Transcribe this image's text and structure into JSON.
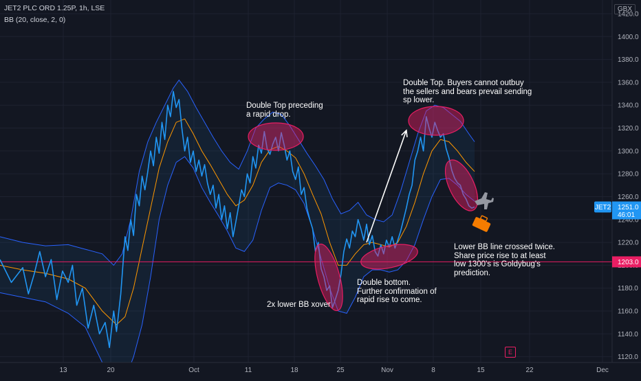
{
  "header": {
    "symbol_line": "JET2 PLC ORD 1.25P, 1h, LSE",
    "indicator_line": "BB (20, close, 2, 0)"
  },
  "currency": "GBX",
  "price_tags": {
    "ticker": "JET2",
    "last_price": "1251.0",
    "countdown": "46:01",
    "hline_price": "1203.0"
  },
  "event_badge": "E",
  "colors": {
    "background": "#131722",
    "grid": "#1e2230",
    "price": "#2196f3",
    "basis": "#ff9800",
    "bands": "#2962ff",
    "band_fill": "rgba(33,150,243,0.08)",
    "hline": "#e91e63",
    "annotation_fill": "rgba(233,30,99,0.45)",
    "annotation_stroke": "#e91e63",
    "arrow": "#ffffff",
    "last_tag": "#2196f3",
    "hline_tag": "#e91e63"
  },
  "annotations": [
    "Double Top preceding\na rapid drop.",
    "Double Top. Buyers cannot outbuy\nthe sellers and bears prevail sending\nsp lower.",
    "Lower BB line crossed twice.\nShare price rise to at least\nlow 1300's is Goldybug's\nprediction.",
    "Double bottom.\nFurther confirmation of\nrapid rise to come.",
    "2x lower BB xover"
  ],
  "chart_data": {
    "type": "line",
    "title": "JET2 PLC ORD 1.25P, 1h, LSE",
    "indicator": "BB (20, close, 2, 0)",
    "ylabel": "",
    "xlabel": "",
    "ylim": [
      1115,
      1432
    ],
    "y_ticks": [
      1120,
      1140,
      1160,
      1180,
      1200,
      1220,
      1240,
      1260,
      1280,
      1300,
      1320,
      1340,
      1360,
      1380,
      1400,
      1420
    ],
    "x_ticks": [
      "13",
      "20",
      "Oct",
      "11",
      "18",
      "25",
      "Nov",
      "8",
      "15",
      "22",
      "Dec"
    ],
    "grid": true,
    "horizontal_line": 1203,
    "last_price": 1251,
    "price_path": [
      [
        0,
        1205
      ],
      [
        4,
        1185
      ],
      [
        8,
        1198
      ],
      [
        10,
        1175
      ],
      [
        12,
        1192
      ],
      [
        14,
        1212
      ],
      [
        16,
        1190
      ],
      [
        18,
        1205
      ],
      [
        20,
        1170
      ],
      [
        22,
        1195
      ],
      [
        24,
        1185
      ],
      [
        25.5,
        1200
      ],
      [
        27,
        1165
      ],
      [
        29,
        1180
      ],
      [
        31,
        1145
      ],
      [
        33,
        1165
      ],
      [
        35,
        1140
      ],
      [
        37,
        1150
      ],
      [
        38.5,
        1128
      ],
      [
        40,
        1160
      ],
      [
        41,
        1142
      ],
      [
        42.5,
        1175
      ],
      [
        44,
        1225
      ],
      [
        45,
        1213
      ],
      [
        46,
        1240
      ],
      [
        47,
        1226
      ],
      [
        48,
        1262
      ],
      [
        49,
        1252
      ],
      [
        50,
        1278
      ],
      [
        51,
        1266
      ],
      [
        52,
        1282
      ],
      [
        53,
        1300
      ],
      [
        54,
        1287
      ],
      [
        55,
        1312
      ],
      [
        56,
        1298
      ],
      [
        57,
        1325
      ],
      [
        58,
        1310
      ],
      [
        59,
        1340
      ],
      [
        60,
        1330
      ],
      [
        61,
        1352
      ],
      [
        62,
        1338
      ],
      [
        63,
        1345
      ],
      [
        64,
        1320
      ],
      [
        65,
        1300
      ],
      [
        66,
        1312
      ],
      [
        67,
        1290
      ],
      [
        68,
        1300
      ],
      [
        69,
        1282
      ],
      [
        70,
        1292
      ],
      [
        71,
        1278
      ],
      [
        72,
        1288
      ],
      [
        73,
        1272
      ],
      [
        74,
        1262
      ],
      [
        75,
        1270
      ],
      [
        76,
        1250
      ],
      [
        77,
        1262
      ],
      [
        78,
        1240
      ],
      [
        79,
        1252
      ],
      [
        80,
        1232
      ],
      [
        81,
        1246
      ],
      [
        82,
        1225
      ],
      [
        83,
        1238
      ],
      [
        84,
        1252
      ],
      [
        85,
        1266
      ],
      [
        86,
        1260
      ],
      [
        87,
        1280
      ],
      [
        88,
        1272
      ],
      [
        89,
        1295
      ],
      [
        90,
        1285
      ],
      [
        91,
        1305
      ],
      [
        92,
        1298
      ],
      [
        93,
        1317
      ],
      [
        94,
        1302
      ],
      [
        95,
        1297
      ],
      [
        96,
        1306
      ],
      [
        97,
        1312
      ],
      [
        98,
        1300
      ],
      [
        99,
        1316
      ],
      [
        100,
        1305
      ],
      [
        101,
        1292
      ],
      [
        102,
        1300
      ],
      [
        103,
        1282
      ],
      [
        104,
        1275
      ],
      [
        105,
        1286
      ],
      [
        106,
        1262
      ],
      [
        107,
        1268
      ],
      [
        108,
        1250
      ],
      [
        109,
        1240
      ],
      [
        110,
        1232
      ],
      [
        111,
        1212
      ],
      [
        112,
        1220
      ],
      [
        113,
        1197
      ],
      [
        114,
        1190
      ],
      [
        115,
        1178
      ],
      [
        116,
        1182
      ],
      [
        117,
        1163
      ],
      [
        118,
        1170
      ],
      [
        119,
        1178
      ],
      [
        120,
        1192
      ],
      [
        121,
        1212
      ],
      [
        122,
        1223
      ],
      [
        123,
        1215
      ],
      [
        124,
        1230
      ],
      [
        125,
        1225
      ],
      [
        126,
        1240
      ],
      [
        127,
        1232
      ],
      [
        128,
        1222
      ],
      [
        129,
        1236
      ],
      [
        130,
        1218
      ],
      [
        131,
        1226
      ],
      [
        132,
        1212
      ],
      [
        133,
        1208
      ],
      [
        134,
        1218
      ],
      [
        135,
        1210
      ],
      [
        136,
        1222
      ],
      [
        137,
        1216
      ],
      [
        138,
        1225
      ],
      [
        139,
        1215
      ],
      [
        140,
        1222
      ],
      [
        141,
        1230
      ],
      [
        142,
        1240
      ],
      [
        143,
        1250
      ],
      [
        144,
        1262
      ],
      [
        145,
        1270
      ],
      [
        146,
        1292
      ],
      [
        147,
        1300
      ],
      [
        148,
        1312
      ],
      [
        149,
        1300
      ],
      [
        150,
        1330
      ],
      [
        151,
        1320
      ],
      [
        152,
        1312
      ],
      [
        153,
        1325
      ],
      [
        154,
        1318
      ],
      [
        155,
        1312
      ],
      [
        156,
        1315
      ],
      [
        157,
        1302
      ],
      [
        158,
        1294
      ],
      [
        159,
        1283
      ],
      [
        160,
        1276
      ],
      [
        161,
        1272
      ],
      [
        162,
        1270
      ],
      [
        163,
        1262
      ],
      [
        164,
        1258
      ],
      [
        165,
        1252
      ],
      [
        166,
        1250
      ],
      [
        167,
        1251
      ]
    ],
    "basis_path": [
      [
        0,
        1200
      ],
      [
        8,
        1196
      ],
      [
        16,
        1193
      ],
      [
        24,
        1188
      ],
      [
        30,
        1180
      ],
      [
        36,
        1160
      ],
      [
        41,
        1148
      ],
      [
        44,
        1155
      ],
      [
        47,
        1180
      ],
      [
        50,
        1215
      ],
      [
        53,
        1250
      ],
      [
        56,
        1285
      ],
      [
        59,
        1308
      ],
      [
        62,
        1325
      ],
      [
        65,
        1328
      ],
      [
        68,
        1315
      ],
      [
        71,
        1300
      ],
      [
        74,
        1288
      ],
      [
        77,
        1275
      ],
      [
        80,
        1262
      ],
      [
        83,
        1252
      ],
      [
        86,
        1257
      ],
      [
        89,
        1270
      ],
      [
        92,
        1290
      ],
      [
        95,
        1301
      ],
      [
        98,
        1304
      ],
      [
        101,
        1300
      ],
      [
        104,
        1294
      ],
      [
        107,
        1280
      ],
      [
        110,
        1262
      ],
      [
        113,
        1245
      ],
      [
        116,
        1220
      ],
      [
        119,
        1200
      ],
      [
        122,
        1200
      ],
      [
        125,
        1210
      ],
      [
        128,
        1218
      ],
      [
        131,
        1220
      ],
      [
        134,
        1218
      ],
      [
        137,
        1216
      ],
      [
        140,
        1220
      ],
      [
        143,
        1234
      ],
      [
        146,
        1255
      ],
      [
        149,
        1280
      ],
      [
        152,
        1300
      ],
      [
        155,
        1310
      ],
      [
        158,
        1308
      ],
      [
        161,
        1300
      ],
      [
        164,
        1290
      ],
      [
        167,
        1282
      ]
    ],
    "upper_band_path": [
      [
        0,
        1225
      ],
      [
        8,
        1220
      ],
      [
        16,
        1217
      ],
      [
        24,
        1218
      ],
      [
        30,
        1214
      ],
      [
        36,
        1210
      ],
      [
        40,
        1200
      ],
      [
        43,
        1210
      ],
      [
        46,
        1240
      ],
      [
        49,
        1282
      ],
      [
        52,
        1308
      ],
      [
        55,
        1325
      ],
      [
        58,
        1340
      ],
      [
        61,
        1355
      ],
      [
        63,
        1362
      ],
      [
        66,
        1352
      ],
      [
        69,
        1338
      ],
      [
        72,
        1325
      ],
      [
        75,
        1312
      ],
      [
        78,
        1300
      ],
      [
        81,
        1290
      ],
      [
        84,
        1284
      ],
      [
        87,
        1300
      ],
      [
        90,
        1320
      ],
      [
        93,
        1328
      ],
      [
        96,
        1334
      ],
      [
        99,
        1332
      ],
      [
        102,
        1322
      ],
      [
        105,
        1310
      ],
      [
        108,
        1298
      ],
      [
        111,
        1287
      ],
      [
        114,
        1275
      ],
      [
        117,
        1258
      ],
      [
        120,
        1245
      ],
      [
        123,
        1248
      ],
      [
        126,
        1255
      ],
      [
        129,
        1244
      ],
      [
        132,
        1240
      ],
      [
        135,
        1238
      ],
      [
        138,
        1244
      ],
      [
        141,
        1265
      ],
      [
        144,
        1290
      ],
      [
        147,
        1315
      ],
      [
        150,
        1335
      ],
      [
        153,
        1340
      ],
      [
        156,
        1338
      ],
      [
        159,
        1332
      ],
      [
        162,
        1326
      ],
      [
        165,
        1315
      ],
      [
        167,
        1308
      ]
    ],
    "lower_band_path": [
      [
        0,
        1176
      ],
      [
        8,
        1172
      ],
      [
        16,
        1168
      ],
      [
        24,
        1158
      ],
      [
        30,
        1146
      ],
      [
        36,
        1115
      ],
      [
        41,
        1098
      ],
      [
        44,
        1100
      ],
      [
        47,
        1120
      ],
      [
        50,
        1148
      ],
      [
        53,
        1190
      ],
      [
        56,
        1240
      ],
      [
        59,
        1270
      ],
      [
        62,
        1290
      ],
      [
        65,
        1295
      ],
      [
        68,
        1285
      ],
      [
        71,
        1268
      ],
      [
        74,
        1255
      ],
      [
        77,
        1243
      ],
      [
        80,
        1230
      ],
      [
        83,
        1215
      ],
      [
        86,
        1212
      ],
      [
        89,
        1222
      ],
      [
        92,
        1248
      ],
      [
        95,
        1268
      ],
      [
        98,
        1272
      ],
      [
        101,
        1270
      ],
      [
        104,
        1266
      ],
      [
        107,
        1254
      ],
      [
        110,
        1232
      ],
      [
        113,
        1206
      ],
      [
        116,
        1180
      ],
      [
        119,
        1160
      ],
      [
        122,
        1158
      ],
      [
        125,
        1172
      ],
      [
        128,
        1190
      ],
      [
        131,
        1196
      ],
      [
        134,
        1196
      ],
      [
        137,
        1194
      ],
      [
        140,
        1196
      ],
      [
        143,
        1204
      ],
      [
        146,
        1218
      ],
      [
        149,
        1240
      ],
      [
        152,
        1260
      ],
      [
        155,
        1275
      ],
      [
        158,
        1276
      ],
      [
        161,
        1270
      ],
      [
        164,
        1262
      ],
      [
        167,
        1256
      ]
    ],
    "arrow": {
      "from": [
        129,
        1220
      ],
      "to": [
        143,
        1318
      ]
    }
  }
}
